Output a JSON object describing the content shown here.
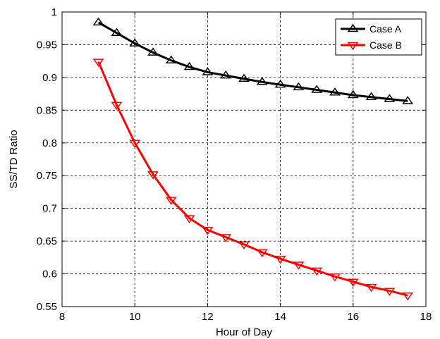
{
  "chart_data": {
    "type": "line",
    "title": "",
    "xlabel": "Hour of Day",
    "ylabel": "SS/TD Ratio",
    "xlim": [
      8,
      18
    ],
    "ylim": [
      0.55,
      1
    ],
    "xticks": [
      "8",
      "10",
      "12",
      "14",
      "16",
      "18"
    ],
    "yticks": [
      "0.55",
      "0.6",
      "0.65",
      "0.7",
      "0.75",
      "0.8",
      "0.85",
      "0.9",
      "0.95",
      "1"
    ],
    "grid": true,
    "legend_position": "top-right",
    "x": [
      9,
      9.5,
      10,
      10.5,
      11,
      11.5,
      12,
      12.5,
      13,
      13.5,
      14,
      14.5,
      15,
      15.5,
      16,
      16.5,
      17,
      17.5
    ],
    "series": [
      {
        "name": "Case A",
        "color": "#000000",
        "marker": "triangle-up",
        "values": [
          0.984,
          0.968,
          0.952,
          0.938,
          0.926,
          0.916,
          0.908,
          0.903,
          0.898,
          0.893,
          0.889,
          0.885,
          0.881,
          0.877,
          0.873,
          0.87,
          0.867,
          0.864
        ]
      },
      {
        "name": "Case B",
        "color": "#ff0000",
        "marker": "triangle-down",
        "values": [
          0.924,
          0.858,
          0.8,
          0.752,
          0.713,
          0.685,
          0.667,
          0.656,
          0.645,
          0.633,
          0.623,
          0.614,
          0.605,
          0.596,
          0.588,
          0.58,
          0.574,
          0.567
        ]
      }
    ]
  }
}
